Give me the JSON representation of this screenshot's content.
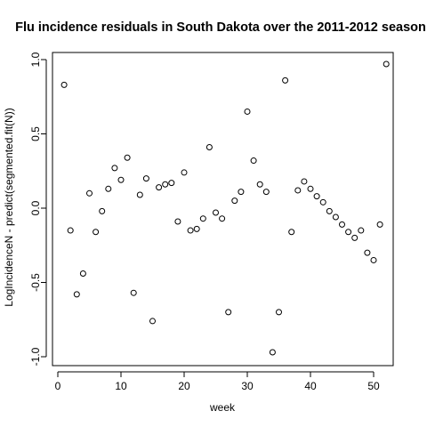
{
  "chart_data": {
    "type": "scatter",
    "title": "Flu incidence residuals in South Dakota over the 2011-2012 season",
    "xlabel": "week",
    "ylabel": "LogIncidenceN - predict(segmented.fit(N))",
    "xlim": [
      0,
      52
    ],
    "ylim": [
      -1.0,
      1.0
    ],
    "xticks": [
      0,
      10,
      20,
      30,
      40,
      50
    ],
    "yticks": [
      -1.0,
      -0.5,
      0.0,
      0.5,
      1.0
    ],
    "xtick_labels": [
      "0",
      "10",
      "20",
      "30",
      "40",
      "50"
    ],
    "ytick_labels": [
      "-1.0",
      "-0.5",
      "0.0",
      "0.5",
      "1.0"
    ],
    "grid": false,
    "marker": "open-circle",
    "x": [
      1,
      2,
      3,
      4,
      5,
      6,
      7,
      8,
      9,
      10,
      11,
      12,
      13,
      14,
      15,
      16,
      17,
      18,
      19,
      20,
      21,
      22,
      23,
      24,
      25,
      26,
      27,
      28,
      29,
      30,
      31,
      32,
      33,
      34,
      35,
      36,
      37,
      38,
      39,
      40,
      41,
      42,
      43,
      44,
      45,
      46,
      47,
      48,
      49,
      50,
      51,
      52
    ],
    "y": [
      0.83,
      -0.15,
      -0.58,
      -0.44,
      0.1,
      -0.16,
      -0.02,
      0.13,
      0.27,
      0.19,
      0.34,
      -0.57,
      0.09,
      0.2,
      -0.76,
      0.14,
      0.16,
      0.17,
      -0.09,
      0.24,
      -0.15,
      -0.14,
      -0.07,
      0.41,
      -0.03,
      -0.07,
      -0.7,
      0.05,
      0.11,
      0.65,
      0.32,
      0.16,
      0.11,
      -0.97,
      -0.7,
      0.86,
      -0.16,
      0.12,
      0.18,
      0.13,
      0.08,
      0.04,
      -0.02,
      -0.06,
      -0.11,
      -0.16,
      -0.2,
      -0.15,
      -0.3,
      -0.35,
      -0.11,
      0.97
    ]
  }
}
